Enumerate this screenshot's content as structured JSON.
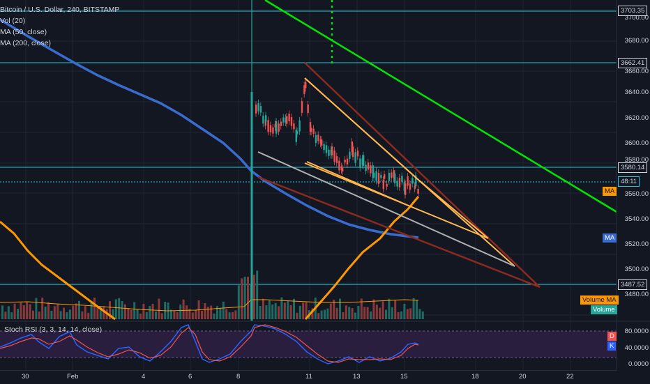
{
  "legend": {
    "title": "Bitcoin / U.S. Dollar, 240, BITSTAMP",
    "vol": "Vol (20)",
    "ma50": "MA (50, close)",
    "ma200": "MA (200, close)"
  },
  "rsi_legend": "Stoch RSI (3, 3, 14, 14, close)",
  "price_axis": [
    "3700.00",
    "3680.00",
    "3660.00",
    "3640.00",
    "3620.00",
    "3600.00",
    "3580.00",
    "3560.00",
    "3540.00",
    "3520.00",
    "3500.00",
    "3480.00"
  ],
  "price_tags": {
    "top": "3703.35",
    "mid_high": "3662.41",
    "resistance": "3580.14",
    "countdown": "48:11",
    "ma": "MA",
    "ma2": "MA",
    "support": "3487.52",
    "volume_ma": "Volume MA",
    "volume": "Volume"
  },
  "rsi_axis": [
    "80.0000",
    "40.0000",
    "0.0000"
  ],
  "rsi_tags": {
    "d": "D",
    "k": "K"
  },
  "time_axis": [
    "30",
    "Feb",
    "4",
    "6",
    "8",
    "11",
    "13",
    "15",
    "18",
    "20",
    "22"
  ],
  "colors": {
    "background": "#131722",
    "up": "#26a69a",
    "down": "#ef5350",
    "ma50": "#ff9800",
    "ma200": "#3a6ccf",
    "trend_green": "#00e600",
    "hline": "#26c6da",
    "rsi_band": "#2a1e3f"
  }
}
